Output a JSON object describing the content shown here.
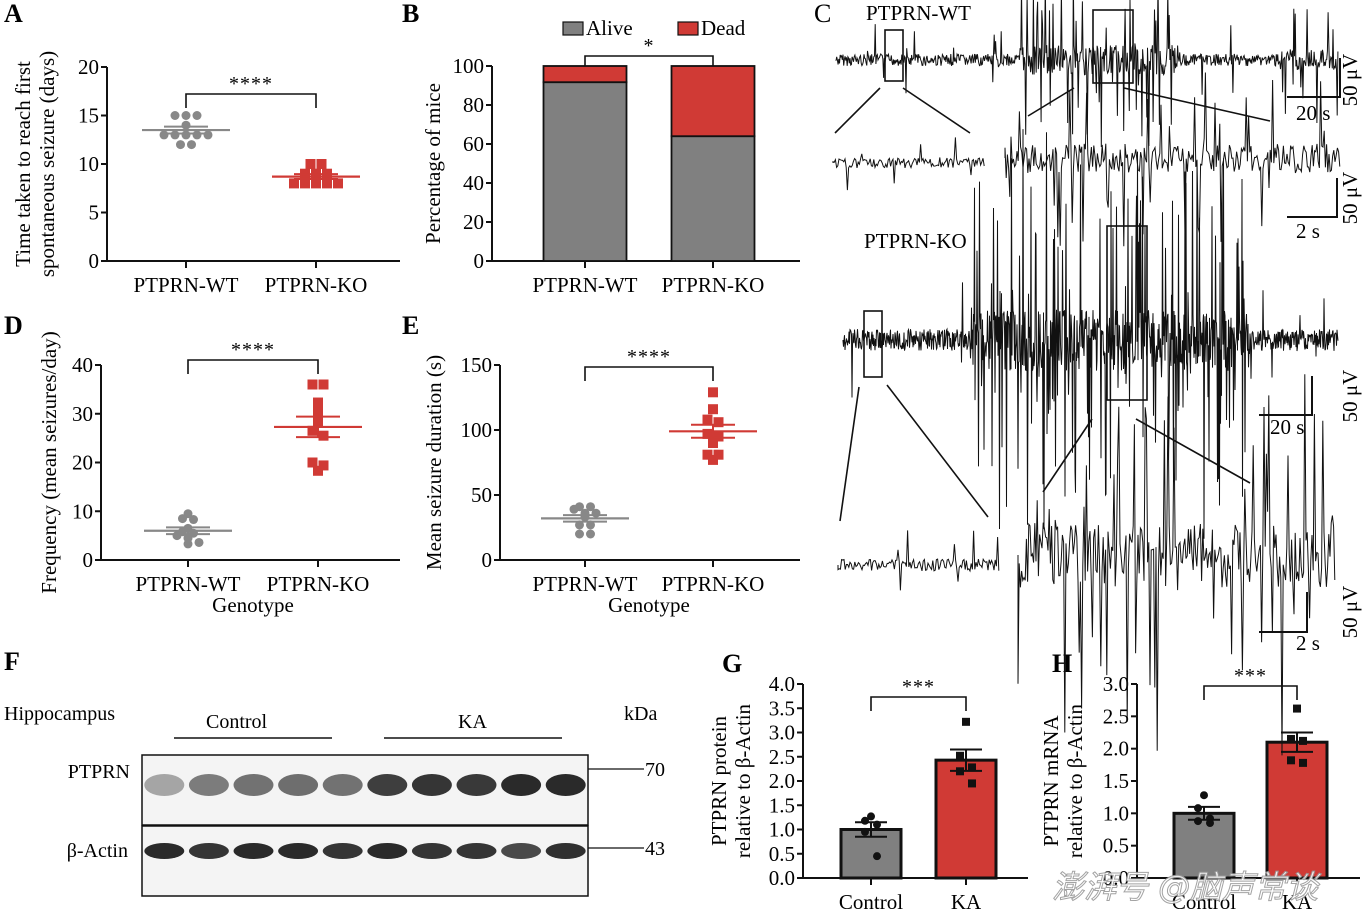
{
  "figure": {
    "colors": {
      "wt": "#888888",
      "ko": "#d03a35",
      "axis": "#111111",
      "alive": "#808080",
      "dead": "#d03a35"
    },
    "watermark": "澎湃号 @脑声常谈"
  },
  "chart_data": [
    {
      "id": "A",
      "type": "scatter",
      "panel_label": "A",
      "title": "",
      "ylabel_lines": [
        "Time taken to reach first",
        "spontaneous seizure (days)"
      ],
      "xlabel": "",
      "categories": [
        "PTPRN-WT",
        "PTPRN-KO"
      ],
      "ylim": [
        0,
        20
      ],
      "yticks": [
        0,
        5,
        10,
        15,
        20
      ],
      "series": [
        {
          "name": "PTPRN-WT",
          "marker": "circle",
          "color": "#888888",
          "values": [
            15,
            15,
            15,
            14,
            13,
            13,
            13,
            13,
            13,
            12,
            12
          ],
          "mean": 13.5,
          "sem": 0.35
        },
        {
          "name": "PTPRN-KO",
          "marker": "square",
          "color": "#d03a35",
          "values": [
            10,
            10,
            9,
            9,
            9,
            8,
            8,
            8,
            8,
            8
          ],
          "mean": 8.7,
          "sem": 0.25
        }
      ],
      "significance": "****"
    },
    {
      "id": "B",
      "type": "bar",
      "stacked": true,
      "panel_label": "B",
      "ylabel": "Percentage of mice",
      "xlabel": "",
      "categories": [
        "PTPRN-WT",
        "PTPRN-KO"
      ],
      "ylim": [
        0,
        100
      ],
      "yticks": [
        0,
        20,
        40,
        60,
        80,
        100
      ],
      "series": [
        {
          "name": "Alive",
          "color": "#808080",
          "values": [
            91.7,
            64
          ]
        },
        {
          "name": "Dead",
          "color": "#d03a35",
          "values": [
            8.3,
            36
          ]
        }
      ],
      "legend": [
        "Alive",
        "Dead"
      ],
      "legend_position": "top",
      "significance": "*"
    },
    {
      "id": "D",
      "type": "scatter",
      "panel_label": "D",
      "ylabel": "Frequency (mean seizures/day)",
      "xlabel": "Genotype",
      "categories": [
        "PTPRN-WT",
        "PTPRN-KO"
      ],
      "ylim": [
        0,
        40
      ],
      "yticks": [
        0,
        10,
        20,
        30,
        40
      ],
      "series": [
        {
          "name": "PTPRN-WT",
          "marker": "circle",
          "color": "#888888",
          "values": [
            9.5,
            8.5,
            8.3,
            6.5,
            5.8,
            5.5,
            5.0,
            4.5,
            3.6,
            3.3
          ],
          "mean": 6.0,
          "sem": 0.7
        },
        {
          "name": "PTPRN-KO",
          "marker": "square",
          "color": "#d03a35",
          "values": [
            36,
            36,
            32.3,
            30.3,
            28.5,
            26.5,
            25.5,
            20,
            19.4,
            18.3
          ],
          "mean": 27.3,
          "sem": 2.1
        }
      ],
      "significance": "****"
    },
    {
      "id": "E",
      "type": "scatter",
      "panel_label": "E",
      "ylabel": "Mean seizure duration (s)",
      "xlabel": "Genotype",
      "categories": [
        "PTPRN-WT",
        "PTPRN-KO"
      ],
      "ylim": [
        0,
        150
      ],
      "yticks": [
        0,
        50,
        100,
        150
      ],
      "series": [
        {
          "name": "PTPRN-WT",
          "marker": "circle",
          "color": "#888888",
          "values": [
            41,
            41,
            39,
            36,
            36,
            33,
            27,
            27,
            20,
            20
          ],
          "mean": 32,
          "sem": 2.5
        },
        {
          "name": "PTPRN-KO",
          "marker": "square",
          "color": "#d03a35",
          "values": [
            129,
            116,
            108,
            106,
            97,
            95,
            90,
            81,
            81,
            77
          ],
          "mean": 99,
          "sem": 5
        },
        {
          "name": "",
          "values": []
        }
      ],
      "significance": "****"
    },
    {
      "id": "G",
      "type": "bar",
      "panel_label": "G",
      "ylabel_lines": [
        "PTPRN protein",
        "relative to β-Actin"
      ],
      "xlabel": "",
      "categories": [
        "Control",
        "KA"
      ],
      "ylim": [
        0,
        4.0
      ],
      "yticks": [
        "0.0",
        "0.5",
        "1.0",
        "1.5",
        "2.0",
        "2.5",
        "3.0",
        "3.5",
        "4.0"
      ],
      "values": [
        1.0,
        2.43
      ],
      "sem": [
        0.15,
        0.22
      ],
      "points": [
        [
          1.27,
          1.18,
          1.1,
          0.95,
          0.45
        ],
        [
          3.22,
          2.52,
          2.28,
          2.2,
          1.95
        ]
      ],
      "colors": [
        "#808080",
        "#d03a35"
      ],
      "significance": "***"
    },
    {
      "id": "H",
      "type": "bar",
      "panel_label": "H",
      "ylabel_lines": [
        "PTPRN mRNA",
        "relative to β-Actin"
      ],
      "xlabel": "",
      "categories": [
        "Control",
        "KA"
      ],
      "ylim": [
        0,
        3.0
      ],
      "yticks": [
        "0.0",
        "0.5",
        "1.0",
        "1.5",
        "2.0",
        "2.5",
        "3.0"
      ],
      "values": [
        1.0,
        2.1
      ],
      "sem": [
        0.1,
        0.15
      ],
      "points": [
        [
          1.28,
          1.08,
          0.92,
          0.88,
          0.85
        ],
        [
          2.62,
          2.15,
          2.12,
          1.82,
          1.78
        ]
      ],
      "colors": [
        "#808080",
        "#d03a35"
      ],
      "significance": "***"
    }
  ],
  "eeg": {
    "panel_label": "C",
    "wt_label": "PTPRN-WT",
    "ko_label": "PTPRN-KO",
    "scalebar_long_time": "20 s",
    "scalebar_short_time": "2 s",
    "scalebar_amp": "50 μV"
  },
  "blot": {
    "panel_label": "F",
    "tissue": "Hippocampus",
    "groups": [
      "Control",
      "KA"
    ],
    "unit": "kDa",
    "rows": [
      {
        "label": "PTPRN",
        "kda": "70",
        "intensity": [
          0.35,
          0.55,
          0.6,
          0.62,
          0.6,
          0.85,
          0.9,
          0.88,
          0.95,
          0.95
        ]
      },
      {
        "label": "β-Actin",
        "kda": "43",
        "intensity": [
          0.95,
          0.9,
          0.95,
          0.95,
          0.9,
          0.95,
          0.9,
          0.9,
          0.8,
          0.92
        ]
      }
    ]
  }
}
